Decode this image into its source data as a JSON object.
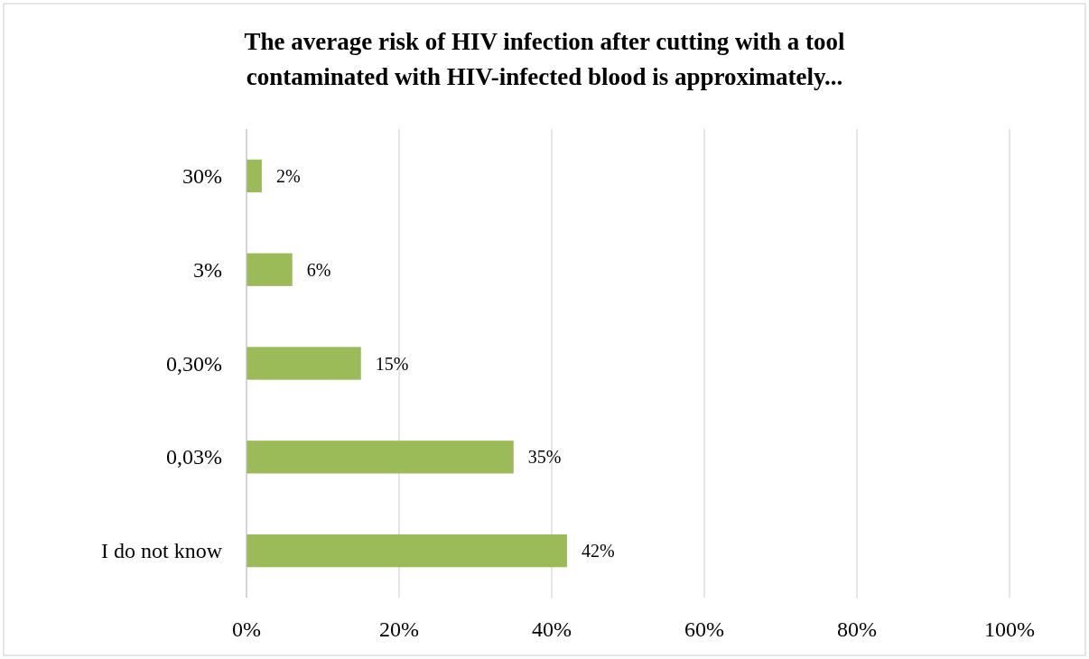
{
  "chart_data": {
    "type": "bar",
    "orientation": "horizontal",
    "title": "The average risk of HIV infection after cutting with a tool contaminated with HIV-infected blood is approximately...",
    "categories": [
      "30%",
      "3%",
      "0,30%",
      "0,03%",
      "I do not know"
    ],
    "values": [
      2,
      6,
      15,
      35,
      42
    ],
    "color": "#9bbb59",
    "xlim": [
      0,
      100
    ],
    "xticks": [
      {
        "value": 0,
        "label": "0%"
      },
      {
        "value": 20,
        "label": "20%"
      },
      {
        "value": 40,
        "label": "40%"
      },
      {
        "value": 60,
        "label": "60%"
      },
      {
        "value": 80,
        "label": "80%"
      },
      {
        "value": 100,
        "label": "100%"
      }
    ],
    "grid": "x",
    "data_labels": true,
    "value_labels": [
      "2%",
      "6%",
      "15%",
      "35%",
      "42%"
    ]
  }
}
